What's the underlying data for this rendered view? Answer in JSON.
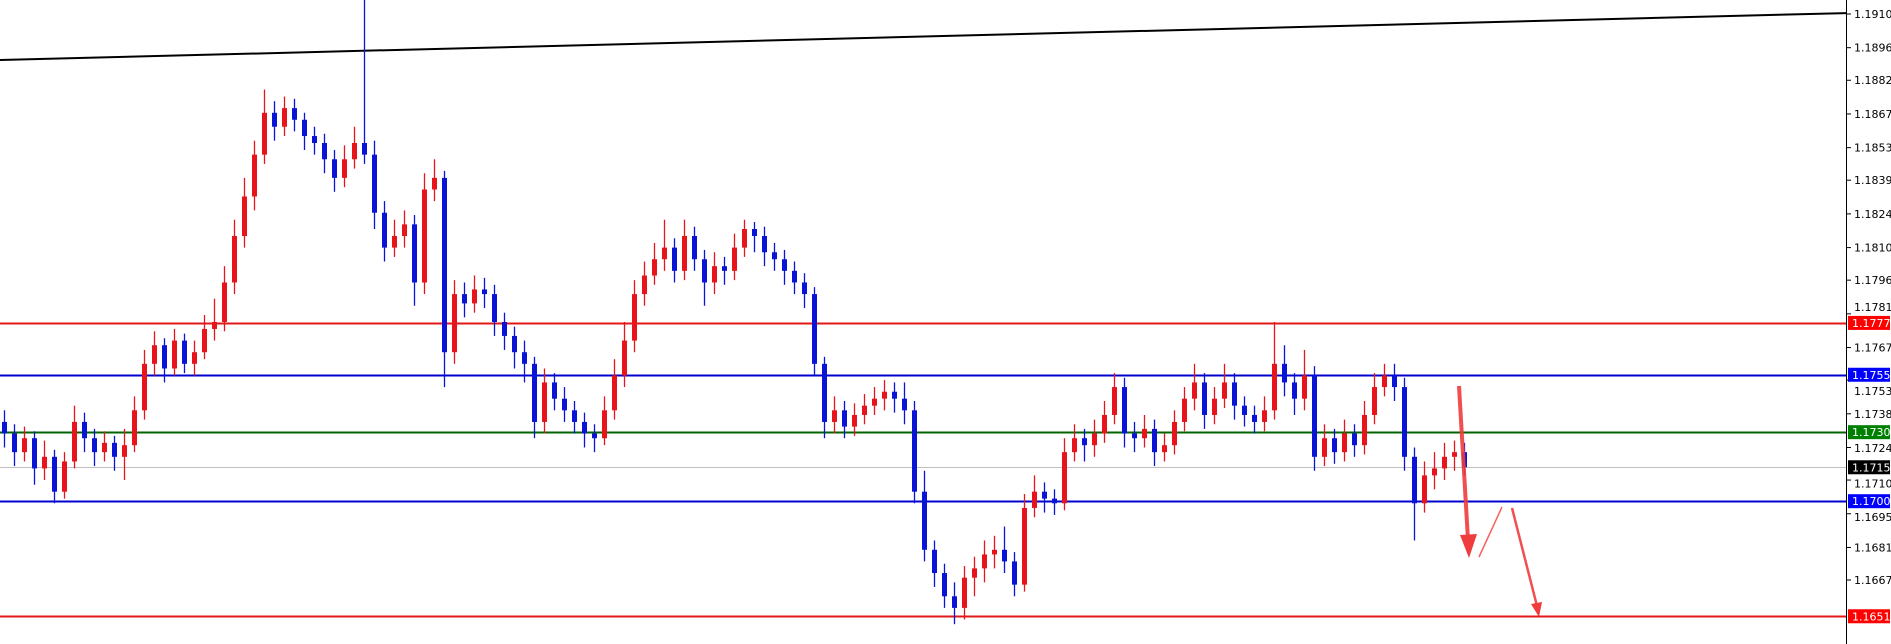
{
  "chart_data": {
    "type": "candlestick",
    "title": "",
    "xlabel": "",
    "ylabel": "",
    "ylim": [
      1.164,
      1.1923
    ],
    "grid": false,
    "colors": {
      "bull": "#e8141c",
      "bear": "#0a14d6",
      "background": "#ffffff",
      "axis": "#000000"
    },
    "y_ticks": [
      "1.19105",
      "1.18960",
      "1.18820",
      "1.18675",
      "1.18530",
      "1.18390",
      "1.18245",
      "1.18100",
      "1.17960",
      "1.17815",
      "1.17670",
      "1.17530",
      "1.17385",
      "1.17240",
      "1.17100",
      "1.16955",
      "1.16810",
      "1.16670"
    ],
    "levels": [
      {
        "price": "1.17776",
        "color": "#e01818",
        "label_color": "#ff0000",
        "text_color": "#ffffff"
      },
      {
        "price": "1.17553",
        "color": "#0000cc",
        "label_color": "#0000ff",
        "text_color": "#ffffff"
      },
      {
        "price": "1.17306",
        "color": "#006400",
        "label_color": "#008000",
        "text_color": "#ffffff"
      },
      {
        "price": "1.17155",
        "color": "#c0c0c0",
        "label_color": "#000000",
        "text_color": "#ffffff"
      },
      {
        "price": "1.17009",
        "color": "#0000cc",
        "label_color": "#0000ff",
        "text_color": "#ffffff"
      },
      {
        "price": "1.16514",
        "color": "#e01818",
        "label_color": "#ff0000",
        "text_color": "#ffffff"
      }
    ],
    "trendline": {
      "color": "#000000",
      "start_price": 1.18907,
      "end_price": 1.19109
    },
    "ohlc": [
      [
        1.1735,
        1.174,
        1.1724,
        1.173
      ],
      [
        1.173,
        1.1734,
        1.1716,
        1.1722
      ],
      [
        1.1722,
        1.1733,
        1.1718,
        1.1728
      ],
      [
        1.1728,
        1.1731,
        1.1708,
        1.1715
      ],
      [
        1.1715,
        1.1727,
        1.171,
        1.172
      ],
      [
        1.172,
        1.1723,
        1.17,
        1.1705
      ],
      [
        1.1705,
        1.1722,
        1.1702,
        1.1718
      ],
      [
        1.1718,
        1.1742,
        1.1715,
        1.1735
      ],
      [
        1.1735,
        1.1739,
        1.1722,
        1.1728
      ],
      [
        1.1728,
        1.1732,
        1.1716,
        1.1722
      ],
      [
        1.1722,
        1.1731,
        1.1718,
        1.1726
      ],
      [
        1.1726,
        1.1729,
        1.1714,
        1.172
      ],
      [
        1.172,
        1.1732,
        1.171,
        1.1725
      ],
      [
        1.1725,
        1.1746,
        1.1722,
        1.174
      ],
      [
        1.174,
        1.1766,
        1.1736,
        1.176
      ],
      [
        1.176,
        1.1774,
        1.1755,
        1.1768
      ],
      [
        1.1768,
        1.1771,
        1.1752,
        1.1758
      ],
      [
        1.1758,
        1.1775,
        1.1755,
        1.177
      ],
      [
        1.177,
        1.1773,
        1.1756,
        1.176
      ],
      [
        1.176,
        1.177,
        1.1755,
        1.1765
      ],
      [
        1.1765,
        1.1781,
        1.1762,
        1.1775
      ],
      [
        1.1775,
        1.1788,
        1.177,
        1.1778
      ],
      [
        1.1778,
        1.1802,
        1.1774,
        1.1795
      ],
      [
        1.1795,
        1.1822,
        1.179,
        1.1815
      ],
      [
        1.1815,
        1.184,
        1.181,
        1.1832
      ],
      [
        1.1832,
        1.1856,
        1.1826,
        1.185
      ],
      [
        1.185,
        1.1878,
        1.1846,
        1.1868
      ],
      [
        1.1868,
        1.1873,
        1.1856,
        1.1862
      ],
      [
        1.1862,
        1.1875,
        1.1858,
        1.187
      ],
      [
        1.187,
        1.1874,
        1.186,
        1.1865
      ],
      [
        1.1865,
        1.1868,
        1.1852,
        1.1858
      ],
      [
        1.1858,
        1.1862,
        1.185,
        1.1855
      ],
      [
        1.1855,
        1.1859,
        1.1842,
        1.1848
      ],
      [
        1.1848,
        1.1852,
        1.1834,
        1.184
      ],
      [
        1.184,
        1.1854,
        1.1836,
        1.1848
      ],
      [
        1.1848,
        1.1862,
        1.1844,
        1.1855
      ],
      [
        1.1855,
        1.1925,
        1.1846,
        1.185
      ],
      [
        1.185,
        1.1856,
        1.1818,
        1.1825
      ],
      [
        1.1825,
        1.183,
        1.1804,
        1.181
      ],
      [
        1.181,
        1.1822,
        1.1806,
        1.1815
      ],
      [
        1.1815,
        1.1826,
        1.181,
        1.182
      ],
      [
        1.182,
        1.1824,
        1.1785,
        1.1795
      ],
      [
        1.1795,
        1.1842,
        1.179,
        1.1835
      ],
      [
        1.1835,
        1.1848,
        1.183,
        1.184
      ],
      [
        1.184,
        1.1843,
        1.175,
        1.1765
      ],
      [
        1.1765,
        1.1796,
        1.176,
        1.179
      ],
      [
        1.179,
        1.1795,
        1.178,
        1.1786
      ],
      [
        1.1786,
        1.1798,
        1.1782,
        1.1792
      ],
      [
        1.1792,
        1.1797,
        1.1784,
        1.179
      ],
      [
        1.179,
        1.1794,
        1.1772,
        1.1778
      ],
      [
        1.1778,
        1.1782,
        1.1766,
        1.1772
      ],
      [
        1.1772,
        1.1776,
        1.1758,
        1.1765
      ],
      [
        1.1765,
        1.177,
        1.1752,
        1.176
      ],
      [
        1.176,
        1.1763,
        1.1728,
        1.1735
      ],
      [
        1.1735,
        1.1758,
        1.173,
        1.1752
      ],
      [
        1.1752,
        1.1756,
        1.174,
        1.1745
      ],
      [
        1.1745,
        1.175,
        1.1735,
        1.174
      ],
      [
        1.174,
        1.1744,
        1.173,
        1.1735
      ],
      [
        1.1735,
        1.1739,
        1.1724,
        1.173
      ],
      [
        1.173,
        1.1734,
        1.1722,
        1.1728
      ],
      [
        1.1728,
        1.1746,
        1.1725,
        1.174
      ],
      [
        1.174,
        1.1762,
        1.1736,
        1.1755
      ],
      [
        1.1755,
        1.1778,
        1.175,
        1.177
      ],
      [
        1.177,
        1.1796,
        1.1765,
        1.179
      ],
      [
        1.179,
        1.1804,
        1.1785,
        1.1798
      ],
      [
        1.1798,
        1.1812,
        1.1794,
        1.1805
      ],
      [
        1.1805,
        1.1822,
        1.18,
        1.181
      ],
      [
        1.181,
        1.1814,
        1.1795,
        1.18
      ],
      [
        1.18,
        1.1822,
        1.1796,
        1.1815
      ],
      [
        1.1815,
        1.1819,
        1.18,
        1.1805
      ],
      [
        1.1805,
        1.1809,
        1.1785,
        1.1795
      ],
      [
        1.1795,
        1.1808,
        1.179,
        1.1802
      ],
      [
        1.1802,
        1.1806,
        1.1794,
        1.18
      ],
      [
        1.18,
        1.1816,
        1.1796,
        1.181
      ],
      [
        1.181,
        1.1822,
        1.1806,
        1.1818
      ],
      [
        1.1818,
        1.1821,
        1.1808,
        1.1815
      ],
      [
        1.1815,
        1.1819,
        1.1802,
        1.1808
      ],
      [
        1.1808,
        1.1812,
        1.18,
        1.1805
      ],
      [
        1.1805,
        1.1809,
        1.1794,
        1.18
      ],
      [
        1.18,
        1.1804,
        1.179,
        1.1795
      ],
      [
        1.1795,
        1.1799,
        1.1784,
        1.179
      ],
      [
        1.179,
        1.1793,
        1.1755,
        1.176
      ],
      [
        1.176,
        1.1763,
        1.1728,
        1.1735
      ],
      [
        1.1735,
        1.1746,
        1.173,
        1.174
      ],
      [
        1.174,
        1.1744,
        1.1728,
        1.1733
      ],
      [
        1.1733,
        1.1743,
        1.1729,
        1.1738
      ],
      [
        1.1738,
        1.1747,
        1.1734,
        1.1742
      ],
      [
        1.1742,
        1.175,
        1.1738,
        1.1745
      ],
      [
        1.1745,
        1.1753,
        1.174,
        1.1748
      ],
      [
        1.1748,
        1.1752,
        1.1739,
        1.1745
      ],
      [
        1.1745,
        1.1752,
        1.1734,
        1.174
      ],
      [
        1.174,
        1.1744,
        1.17,
        1.1705
      ],
      [
        1.1705,
        1.1714,
        1.1675,
        1.168
      ],
      [
        1.168,
        1.1684,
        1.1664,
        1.167
      ],
      [
        1.167,
        1.1674,
        1.1655,
        1.166
      ],
      [
        1.166,
        1.1666,
        1.1648,
        1.1655
      ],
      [
        1.1655,
        1.1673,
        1.165,
        1.1668
      ],
      [
        1.1668,
        1.1677,
        1.166,
        1.1672
      ],
      [
        1.1672,
        1.1684,
        1.1666,
        1.1678
      ],
      [
        1.1678,
        1.1686,
        1.1672,
        1.168
      ],
      [
        1.168,
        1.169,
        1.167,
        1.1675
      ],
      [
        1.1675,
        1.1679,
        1.166,
        1.1665
      ],
      [
        1.1665,
        1.1704,
        1.1662,
        1.1698
      ],
      [
        1.1698,
        1.1712,
        1.1694,
        1.1705
      ],
      [
        1.1705,
        1.1709,
        1.1696,
        1.1702
      ],
      [
        1.1702,
        1.1706,
        1.1695,
        1.17
      ],
      [
        1.17,
        1.1728,
        1.1697,
        1.1722
      ],
      [
        1.1722,
        1.1734,
        1.1718,
        1.1728
      ],
      [
        1.1728,
        1.1732,
        1.1718,
        1.1725
      ],
      [
        1.1725,
        1.1736,
        1.172,
        1.173
      ],
      [
        1.173,
        1.1744,
        1.1726,
        1.1738
      ],
      [
        1.1738,
        1.1756,
        1.1734,
        1.175
      ],
      [
        1.175,
        1.1754,
        1.1724,
        1.173
      ],
      [
        1.173,
        1.1735,
        1.1722,
        1.1728
      ],
      [
        1.1728,
        1.1738,
        1.1724,
        1.1732
      ],
      [
        1.1732,
        1.1736,
        1.1716,
        1.1722
      ],
      [
        1.1722,
        1.173,
        1.1718,
        1.1725
      ],
      [
        1.1725,
        1.174,
        1.1721,
        1.1735
      ],
      [
        1.1735,
        1.175,
        1.1731,
        1.1745
      ],
      [
        1.1745,
        1.176,
        1.174,
        1.1752
      ],
      [
        1.1752,
        1.1756,
        1.1732,
        1.1738
      ],
      [
        1.1738,
        1.175,
        1.1734,
        1.1745
      ],
      [
        1.1745,
        1.176,
        1.1741,
        1.1752
      ],
      [
        1.1752,
        1.1756,
        1.1736,
        1.1742
      ],
      [
        1.1742,
        1.1746,
        1.1733,
        1.1738
      ],
      [
        1.1738,
        1.1742,
        1.173,
        1.1735
      ],
      [
        1.1735,
        1.1746,
        1.1731,
        1.174
      ],
      [
        1.174,
        1.1778,
        1.1736,
        1.176
      ],
      [
        1.176,
        1.1768,
        1.1746,
        1.1752
      ],
      [
        1.1752,
        1.1756,
        1.1738,
        1.1745
      ],
      [
        1.1745,
        1.1766,
        1.174,
        1.1755
      ],
      [
        1.1755,
        1.1759,
        1.1714,
        1.172
      ],
      [
        1.172,
        1.1734,
        1.1716,
        1.1728
      ],
      [
        1.1728,
        1.1732,
        1.1717,
        1.1722
      ],
      [
        1.1722,
        1.1736,
        1.1718,
        1.173
      ],
      [
        1.173,
        1.1734,
        1.172,
        1.1725
      ],
      [
        1.1725,
        1.1744,
        1.1721,
        1.1738
      ],
      [
        1.1738,
        1.1756,
        1.1734,
        1.175
      ],
      [
        1.175,
        1.176,
        1.1746,
        1.1755
      ],
      [
        1.1755,
        1.176,
        1.1744,
        1.175
      ],
      [
        1.175,
        1.1754,
        1.1714,
        1.172
      ],
      [
        1.172,
        1.1724,
        1.1684,
        1.17
      ],
      [
        1.17,
        1.1718,
        1.1696,
        1.1712
      ],
      [
        1.1712,
        1.1722,
        1.1706,
        1.1715
      ],
      [
        1.1715,
        1.1726,
        1.171,
        1.172
      ],
      [
        1.172,
        1.1727,
        1.1714,
        1.1722
      ],
      [
        1.1722,
        1.1726,
        1.1712,
        1.17155
      ]
    ],
    "annotations": [
      {
        "type": "arrow",
        "color": "#f03c3c",
        "direction": "down",
        "target_price": 1.1679
      },
      {
        "type": "line",
        "color": "#f03c3c",
        "direction": "up",
        "target_price": 1.169
      },
      {
        "type": "arrow",
        "color": "#f03c3c",
        "direction": "down",
        "target_price": 1.16514
      }
    ]
  }
}
